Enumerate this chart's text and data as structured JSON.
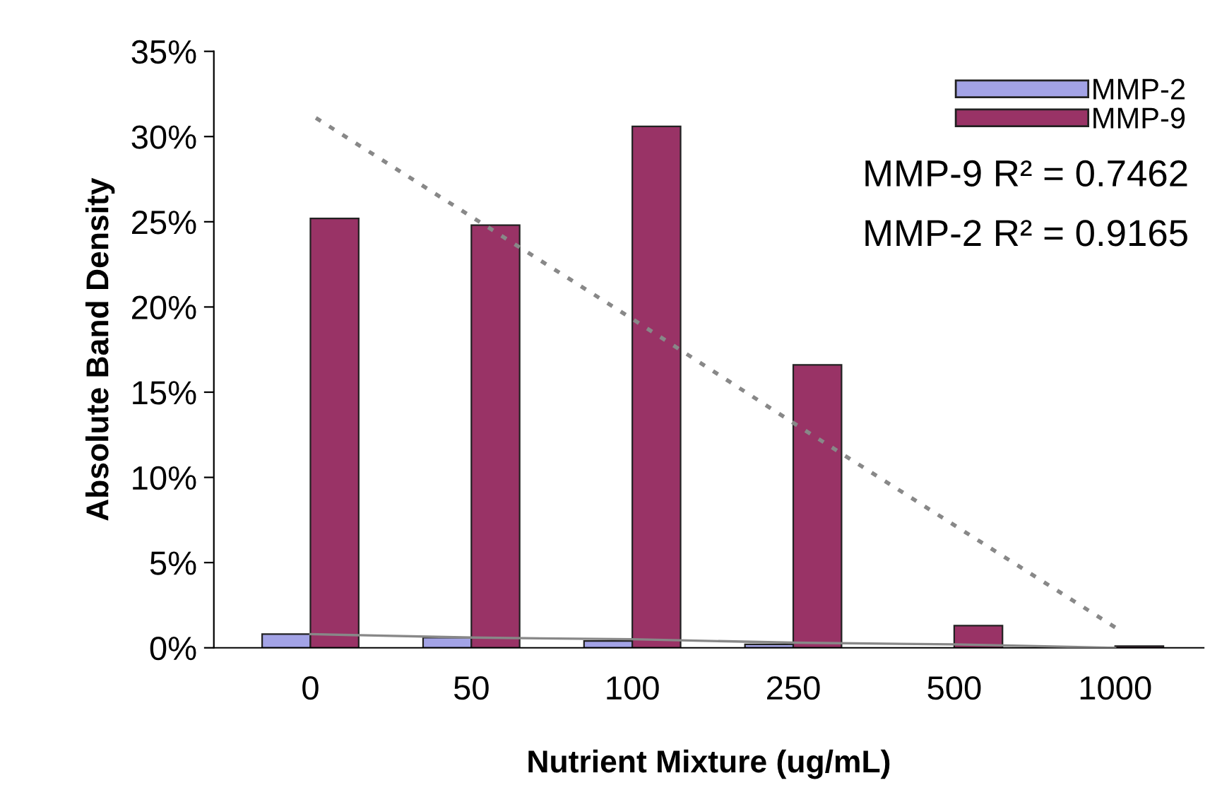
{
  "chart_data": {
    "type": "bar",
    "xlabel": "Nutrient Mixture (ug/mL)",
    "ylabel": "Absolute Band Density",
    "categories": [
      "0",
      "50",
      "100",
      "250",
      "500",
      "1000"
    ],
    "series": [
      {
        "name": "MMP-2",
        "color": "#a3a3e6",
        "values": [
          0.8,
          0.6,
          0.4,
          0.2,
          null,
          null
        ]
      },
      {
        "name": "MMP-9",
        "color": "#993366",
        "values": [
          25.2,
          24.8,
          30.6,
          16.6,
          1.3,
          0.1
        ]
      },
      {
        "type": "line",
        "color": "#888888",
        "line_style": "dotted",
        "values": [
          31.3,
          25.3,
          19.3,
          13.2,
          7.2,
          1.2
        ]
      },
      {
        "type": "line",
        "color": "#888888",
        "line_style": "solid",
        "values": [
          0.8,
          0.6,
          0.5,
          0.3,
          0.2,
          0.0
        ]
      }
    ],
    "ylim": [
      0,
      35
    ],
    "yticks": [
      {
        "value": 0,
        "label": "0%"
      },
      {
        "value": 5,
        "label": "5%"
      },
      {
        "value": 10,
        "label": "10%"
      },
      {
        "value": 15,
        "label": "15%"
      },
      {
        "value": 20,
        "label": "20%"
      },
      {
        "value": 25,
        "label": "25%"
      },
      {
        "value": 30,
        "label": "30%"
      },
      {
        "value": 35,
        "label": "35%"
      }
    ],
    "annotations": [
      "MMP-9 R² = 0.7462",
      "MMP-2 R² = 0.9165"
    ],
    "legend": "top right",
    "grid": false
  }
}
